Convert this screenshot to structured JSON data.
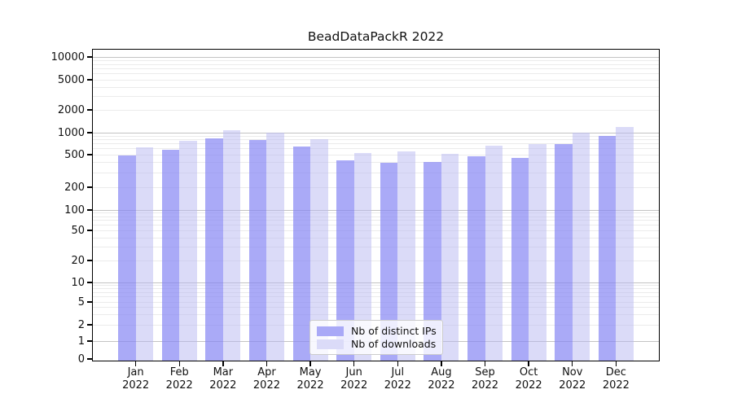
{
  "chart_data": {
    "type": "bar",
    "title": "BeadDataPackR 2022",
    "categories": [
      "Jan",
      "Feb",
      "Mar",
      "Apr",
      "May",
      "Jun",
      "Jul",
      "Aug",
      "Sep",
      "Oct",
      "Nov",
      "Dec"
    ],
    "year_label": "2022",
    "series": [
      {
        "name": "Nb of distinct IPs",
        "color_hex": "#a9a9f7",
        "fill": "rgba(134,134,244,0.7)",
        "values": [
          490,
          580,
          835,
          795,
          645,
          430,
          400,
          410,
          475,
          455,
          700,
          900
        ]
      },
      {
        "name": "Nb of downloads",
        "color_hex": "#dbdbf8",
        "fill": "rgba(184,184,242,0.5)",
        "values": [
          630,
          775,
          1075,
          1000,
          815,
          525,
          555,
          515,
          660,
          690,
          1000,
          1190
        ]
      }
    ],
    "yscale": "log-with-zero",
    "yticks": [
      0,
      1,
      2,
      5,
      10,
      20,
      50,
      100,
      200,
      500,
      1000,
      2000,
      5000,
      10000
    ],
    "ylim": [
      0,
      12800
    ],
    "xlabel": "",
    "ylabel": "",
    "grid": "horizontal",
    "grid_major_color": "#c3c3c3",
    "grid_minor_color": "#ebebeb",
    "legend_position": "lower center"
  }
}
